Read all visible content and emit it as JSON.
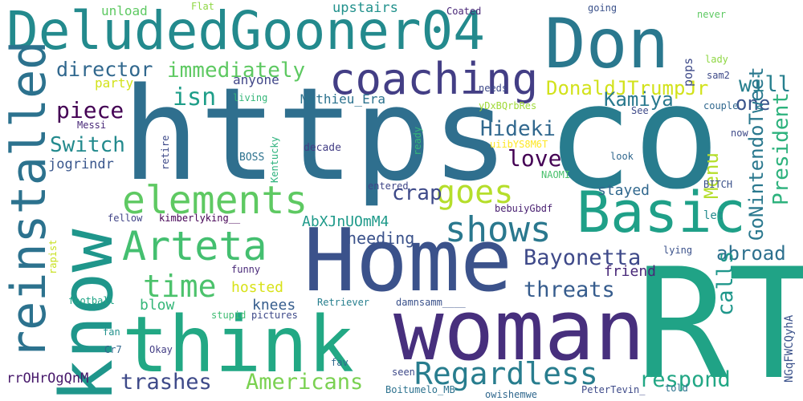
{
  "words": [
    {
      "text": "https",
      "color": "#2f6f8e"
    },
    {
      "text": "co",
      "color": "#287c8e"
    },
    {
      "text": "RT",
      "color": "#20a386"
    },
    {
      "text": "Home",
      "color": "#3b528b"
    },
    {
      "text": "woman",
      "color": "#472f7d"
    },
    {
      "text": "think",
      "color": "#22a884"
    },
    {
      "text": "DeludedGooner04",
      "color": "#238a8d"
    },
    {
      "text": "Don",
      "color": "#2a788e"
    },
    {
      "text": "know",
      "color": "#1f968b"
    },
    {
      "text": "Basic",
      "color": "#1fa088"
    },
    {
      "text": "reinstalled",
      "color": "#2c728e"
    },
    {
      "text": "coaching",
      "color": "#433e85"
    },
    {
      "text": "elements",
      "color": "#5ec962"
    },
    {
      "text": "Arteta",
      "color": "#44bf70"
    },
    {
      "text": "shows",
      "color": "#2a788e"
    },
    {
      "text": "goes",
      "color": "#b5de2b"
    },
    {
      "text": "Regardless",
      "color": "#287d8e"
    },
    {
      "text": "time",
      "color": "#4cc26c"
    },
    {
      "text": "Bayonetta",
      "color": "#3e4989"
    },
    {
      "text": "threats",
      "color": "#365c8d"
    },
    {
      "text": "DonaldJTrumpJr",
      "color": "#d2e21b"
    },
    {
      "text": "trashes",
      "color": "#3e4a89"
    },
    {
      "text": "Americans",
      "color": "#7ad151"
    },
    {
      "text": "respond",
      "color": "#22a785"
    },
    {
      "text": "immediately",
      "color": "#5ec962"
    },
    {
      "text": "director",
      "color": "#31688e"
    },
    {
      "text": "piece",
      "color": "#440154"
    },
    {
      "text": "Switch",
      "color": "#238a8d"
    },
    {
      "text": "Hideki",
      "color": "#31688e"
    },
    {
      "text": "Kamiya",
      "color": "#29798e"
    },
    {
      "text": "love",
      "color": "#440154"
    },
    {
      "text": "crap",
      "color": "#3e4a89"
    },
    {
      "text": "will",
      "color": "#277f8e"
    },
    {
      "text": "one",
      "color": "#3a548c"
    },
    {
      "text": "isn",
      "color": "#1f9e89"
    },
    {
      "text": "President",
      "color": "#2db27d"
    },
    {
      "text": "GoNintendoTweet",
      "color": "#2a788e"
    },
    {
      "text": "Menu",
      "color": "#b5de2b"
    },
    {
      "text": "abroad",
      "color": "#2d708e"
    },
    {
      "text": "calls",
      "color": "#1f978b"
    },
    {
      "text": "AbXJnUOmM4",
      "color": "#1f9a8a"
    },
    {
      "text": "needing",
      "color": "#3b528b"
    },
    {
      "text": "friend",
      "color": "#482878"
    },
    {
      "text": "jogrindr",
      "color": "#39568c"
    },
    {
      "text": "Mathieu_Era",
      "color": "#2c728e"
    },
    {
      "text": "anyone",
      "color": "#404688"
    },
    {
      "text": "hosted",
      "color": "#d8e219"
    },
    {
      "text": "knees",
      "color": "#365d8d"
    },
    {
      "text": "blow",
      "color": "#35b779"
    },
    {
      "text": "stayed",
      "color": "#31688e"
    },
    {
      "text": "party",
      "color": "#d2e21b"
    },
    {
      "text": "upstairs",
      "color": "#21918c"
    },
    {
      "text": "unload",
      "color": "#5ec962"
    },
    {
      "text": "Flat",
      "color": "#8fd744"
    },
    {
      "text": "Coated",
      "color": "#482677"
    },
    {
      "text": "going",
      "color": "#3b528b"
    },
    {
      "text": "never",
      "color": "#5ec962"
    },
    {
      "text": "lady",
      "color": "#8fd744"
    },
    {
      "text": "pops",
      "color": "#3e4a89"
    },
    {
      "text": "sam2",
      "color": "#3e4a89"
    },
    {
      "text": "couple",
      "color": "#31688e"
    },
    {
      "text": "needs",
      "color": "#3e4a89"
    },
    {
      "text": "yDxBQrbRes",
      "color": "#a0da39"
    },
    {
      "text": "See",
      "color": "#3e4a89"
    },
    {
      "text": "Messi",
      "color": "#482878"
    },
    {
      "text": "living",
      "color": "#35b779"
    },
    {
      "text": "now",
      "color": "#3e4a89"
    },
    {
      "text": "uiibYS8M6T",
      "color": "#fde725"
    },
    {
      "text": "NAOMI",
      "color": "#4ac16d"
    },
    {
      "text": "look",
      "color": "#31688e"
    },
    {
      "text": "BITCH",
      "color": "#3b528b"
    },
    {
      "text": "decade",
      "color": "#433e85"
    },
    {
      "text": "BOSS",
      "color": "#2c728e"
    },
    {
      "text": "retire",
      "color": "#3e4a89"
    },
    {
      "text": "Kentucky",
      "color": "#2db27d"
    },
    {
      "text": "ready",
      "color": "#35b779"
    },
    {
      "text": "entered",
      "color": "#404688"
    },
    {
      "text": "bebuiyGbdf",
      "color": "#481f70"
    },
    {
      "text": "let",
      "color": "#238a8d"
    },
    {
      "text": "fellow",
      "color": "#414487"
    },
    {
      "text": "kimberlyking__",
      "color": "#440154"
    },
    {
      "text": "rapist",
      "color": "#c8e020"
    },
    {
      "text": "funny",
      "color": "#482878"
    },
    {
      "text": "lying",
      "color": "#3b528b"
    },
    {
      "text": "NGqFWCQyhA",
      "color": "#3b528b"
    },
    {
      "text": "football",
      "color": "#20a486"
    },
    {
      "text": "stupid",
      "color": "#3fbc73"
    },
    {
      "text": "pictures",
      "color": "#3e4989"
    },
    {
      "text": "Retriever",
      "color": "#277f8e"
    },
    {
      "text": "damnsamm____",
      "color": "#3b528b"
    },
    {
      "text": "fan",
      "color": "#21918c"
    },
    {
      "text": "Cr7",
      "color": "#31688e"
    },
    {
      "text": "Okay",
      "color": "#433e85"
    },
    {
      "text": "fav",
      "color": "#31688e"
    },
    {
      "text": "seen",
      "color": "#3e4a89"
    },
    {
      "text": "told",
      "color": "#2c728e"
    },
    {
      "text": "rrOHrOgQnM",
      "color": "#481a6c"
    },
    {
      "text": "Boitumelo_MB",
      "color": "#2c728e"
    },
    {
      "text": "owishemwe",
      "color": "#31688e"
    },
    {
      "text": "PeterTevin_",
      "color": "#3e4a89"
    }
  ]
}
